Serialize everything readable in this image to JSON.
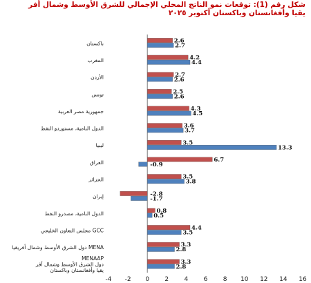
{
  "header": {
    "title_line1": "شكل رقم (1): توقعات نمو الناتج المحلي الإجمالي للشرق الأوسط وشمال أفر",
    "title_line2": "يقيا وأفغانستان وباكستان أكتوبر ٢٠٢٥"
  },
  "chart_data": {
    "type": "bar",
    "orientation": "horizontal",
    "categories": [
      "باكستان",
      "المغرب",
      "الأردن",
      "تونس",
      "جمهورية مصر العربية",
      "الدول النامية، مستوردو النفط",
      "ليبيا",
      "العراق",
      "الجزائر",
      "إيران",
      "الدول النامية، مصدرو النفط",
      "مجلس التعاون الخليجي GCC",
      "دول الشرق الأوسط وشمال أفريقيا MENA",
      "MENAAP\nدول الشرق الأوسط وشمال أفر\nيقيا وأفغانستان وباكستان"
    ],
    "series": [
      {
        "color": "#c0504d",
        "values": [
          2.6,
          4.2,
          2.7,
          2.5,
          4.3,
          3.6,
          3.5,
          6.7,
          3.5,
          -2.8,
          0.8,
          4.4,
          3.3,
          3.3
        ]
      },
      {
        "color": "#4f81bd",
        "values": [
          2.7,
          4.4,
          2.6,
          2.6,
          4.5,
          3.7,
          13.3,
          -0.9,
          3.8,
          -1.7,
          0.5,
          3.5,
          2.8,
          2.8
        ]
      }
    ],
    "xlim": [
      -4,
      16
    ],
    "xticks": [
      -4,
      -2,
      0,
      2,
      4,
      6,
      8,
      10,
      12,
      14,
      16
    ],
    "grid": false,
    "legend": "none"
  }
}
